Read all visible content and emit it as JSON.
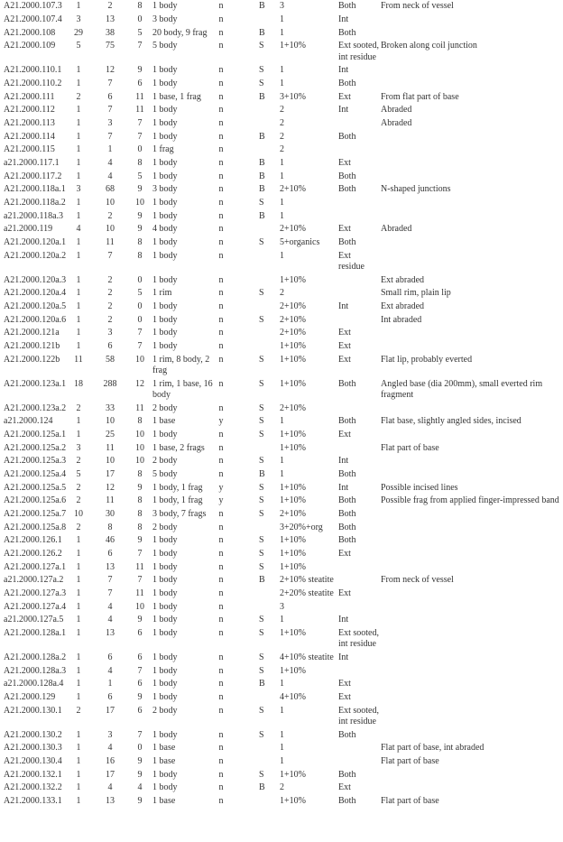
{
  "rows": [
    [
      "A21.2000.107.3",
      "1",
      "2",
      "8",
      "1 body",
      "n",
      "B",
      "3",
      "Both",
      "From neck of vessel"
    ],
    [
      "A21.2000.107.4",
      "3",
      "13",
      "0",
      "3 body",
      "n",
      "",
      "1",
      "Int",
      ""
    ],
    [
      "A21.2000.108",
      "29",
      "38",
      "5",
      "20 body, 9 frag",
      "n",
      "B",
      "1",
      "Both",
      ""
    ],
    [
      "A21.2000.109",
      "5",
      "75",
      "7",
      "5 body",
      "n",
      "S",
      "1+10%",
      "Ext sooted, int residue",
      "Broken along coil junction"
    ],
    [
      "A21.2000.110.1",
      "1",
      "12",
      "9",
      "1 body",
      "n",
      "S",
      "1",
      "Int",
      ""
    ],
    [
      "A21.2000.110.2",
      "1",
      "7",
      "6",
      "1 body",
      "n",
      "S",
      "1",
      "Both",
      ""
    ],
    [
      "A21.2000.111",
      "2",
      "6",
      "11",
      "1 base, 1 frag",
      "n",
      "B",
      "3+10%",
      "Ext",
      "From flat part of base"
    ],
    [
      "A21.2000.112",
      "1",
      "7",
      "11",
      "1 body",
      "n",
      "",
      "2",
      "Int",
      "Abraded"
    ],
    [
      "A21.2000.113",
      "1",
      "3",
      "7",
      "1 body",
      "n",
      "",
      "2",
      "",
      "Abraded"
    ],
    [
      "A21.2000.114",
      "1",
      "7",
      "7",
      "1 body",
      "n",
      "B",
      "2",
      "Both",
      ""
    ],
    [
      "A21.2000.115",
      "1",
      "1",
      "0",
      "1 frag",
      "n",
      "",
      "2",
      "",
      ""
    ],
    [
      "a21.2000.117.1",
      "1",
      "4",
      "8",
      "1 body",
      "n",
      "B",
      "1",
      "Ext",
      ""
    ],
    [
      "A21.2000.117.2",
      "1",
      "4",
      "5",
      "1 body",
      "n",
      "B",
      "1",
      "Both",
      ""
    ],
    [
      "A21.2000.118a.1",
      "3",
      "68",
      "9",
      "3 body",
      "n",
      "B",
      "2+10%",
      "Both",
      "N-shaped junctions"
    ],
    [
      "A21.2000.118a.2",
      "1",
      "10",
      "10",
      "1 body",
      "n",
      "S",
      "1",
      "",
      ""
    ],
    [
      "a21.2000.118a.3",
      "1",
      "2",
      "9",
      "1 body",
      "n",
      "B",
      "1",
      "",
      ""
    ],
    [
      "a21.2000.119",
      "4",
      "10",
      "9",
      "4 body",
      "n",
      "",
      "2+10%",
      "Ext",
      "Abraded"
    ],
    [
      "A21.2000.120a.1",
      "1",
      "11",
      "8",
      "1 body",
      "n",
      "S",
      "5+organics",
      "Both",
      ""
    ],
    [
      "A21.2000.120a.2",
      "1",
      "7",
      "8",
      "1 body",
      "n",
      "",
      "1",
      "Ext residue",
      ""
    ],
    [
      "A21.2000.120a.3",
      "1",
      "2",
      "0",
      "1 body",
      "n",
      "",
      "1+10%",
      "",
      "Ext abraded"
    ],
    [
      "A21.2000.120a.4",
      "1",
      "2",
      "5",
      "1 rim",
      "n",
      "S",
      "2",
      "",
      "Small rim, plain lip"
    ],
    [
      "A21.2000.120a.5",
      "1",
      "2",
      "0",
      "1 body",
      "n",
      "",
      "2+10%",
      "Int",
      "Ext abraded"
    ],
    [
      "A21.2000.120a.6",
      "1",
      "2",
      "0",
      "1 body",
      "n",
      "S",
      "2+10%",
      "",
      "Int abraded"
    ],
    [
      "A21.2000.121a",
      "1",
      "3",
      "7",
      "1 body",
      "n",
      "",
      "2+10%",
      "Ext",
      ""
    ],
    [
      "A21.2000.121b",
      "1",
      "6",
      "7",
      "1 body",
      "n",
      "",
      "1+10%",
      "Ext",
      ""
    ],
    [
      "A21.2000.122b",
      "11",
      "58",
      "10",
      "1 rim, 8 body, 2 frag",
      "n",
      "S",
      "1+10%",
      "Ext",
      "Flat lip, probably everted"
    ],
    [
      "A21.2000.123a.1",
      "18",
      "288",
      "12",
      "1 rim, 1 base, 16 body",
      "n",
      "S",
      "1+10%",
      "Both",
      "Angled base (dia 200mm), small everted rim fragment"
    ],
    [
      "A21.2000.123a.2",
      "2",
      "33",
      "11",
      "2 body",
      "n",
      "S",
      "2+10%",
      "",
      ""
    ],
    [
      "a21.2000.124",
      "1",
      "10",
      "8",
      "1 base",
      "y",
      "S",
      "1",
      "Both",
      "Flat base, slightly angled sides, incised"
    ],
    [
      "A21.2000.125a.1",
      "1",
      "25",
      "10",
      "1 body",
      "n",
      "S",
      "1+10%",
      "Ext",
      ""
    ],
    [
      "A21.2000.125a.2",
      "3",
      "11",
      "10",
      "1 base, 2 frags",
      "n",
      "",
      "1+10%",
      "",
      "Flat part of base"
    ],
    [
      "A21.2000.125a.3",
      "2",
      "10",
      "10",
      "2 body",
      "n",
      "S",
      "1",
      "Int",
      ""
    ],
    [
      "A21.2000.125a.4",
      "5",
      "17",
      "8",
      "5 body",
      "n",
      "B",
      "1",
      "Both",
      ""
    ],
    [
      "A21.2000.125a.5",
      "2",
      "12",
      "9",
      "1 body, 1 frag",
      "y",
      "S",
      "1+10%",
      "Int",
      "Possible incised lines"
    ],
    [
      "A21.2000.125a.6",
      "2",
      "11",
      "8",
      "1 body, 1 frag",
      "y",
      "S",
      "1+10%",
      "Both",
      "Possible frag from applied finger-impressed band"
    ],
    [
      "A21.2000.125a.7",
      "10",
      "30",
      "8",
      "3 body, 7 frags",
      "n",
      "S",
      "2+10%",
      "Both",
      ""
    ],
    [
      "A21.2000.125a.8",
      "2",
      "8",
      "8",
      "2 body",
      "n",
      "",
      "3+20%+org",
      "Both",
      ""
    ],
    [
      "A21.2000.126.1",
      "1",
      "46",
      "9",
      "1 body",
      "n",
      "S",
      "1+10%",
      "Both",
      ""
    ],
    [
      "A21.2000.126.2",
      "1",
      "6",
      "7",
      "1 body",
      "n",
      "S",
      "1+10%",
      "Ext",
      ""
    ],
    [
      "A21.2000.127a.1",
      "1",
      "13",
      "11",
      "1 body",
      "n",
      "S",
      "1+10%",
      "",
      ""
    ],
    [
      "a21.2000.127a.2",
      "1",
      "7",
      "7",
      "1 body",
      "n",
      "B",
      "2+10% steatite",
      "",
      "From neck of vessel"
    ],
    [
      "A21.2000.127a.3",
      "1",
      "7",
      "11",
      "1 body",
      "n",
      "",
      "2+20% steatite",
      "Ext",
      ""
    ],
    [
      "A21.2000.127a.4",
      "1",
      "4",
      "10",
      "1 body",
      "n",
      "",
      "3",
      "",
      ""
    ],
    [
      "a21.2000.127a.5",
      "1",
      "4",
      "9",
      "1 body",
      "n",
      "S",
      "1",
      "Int",
      ""
    ],
    [
      "A21.2000.128a.1",
      "1",
      "13",
      "6",
      "1 body",
      "n",
      "S",
      "1+10%",
      "Ext sooted, int residue",
      ""
    ],
    [
      "A21.2000.128a.2",
      "1",
      "6",
      "6",
      "1 body",
      "n",
      "S",
      "4+10% steatite",
      "Int",
      ""
    ],
    [
      "A21.2000.128a.3",
      "1",
      "4",
      "7",
      "1 body",
      "n",
      "S",
      "1+10%",
      "",
      ""
    ],
    [
      "a21.2000.128a.4",
      "1",
      "1",
      "6",
      "1 body",
      "n",
      "B",
      "1",
      "Ext",
      ""
    ],
    [
      "A21.2000.129",
      "1",
      "6",
      "9",
      "1 body",
      "n",
      "",
      "4+10%",
      "Ext",
      ""
    ],
    [
      "A21.2000.130.1",
      "2",
      "17",
      "6",
      "2 body",
      "n",
      "S",
      "1",
      "Ext sooted, int residue",
      ""
    ],
    [
      "A21.2000.130.2",
      "1",
      "3",
      "7",
      "1 body",
      "n",
      "S",
      "1",
      "Both",
      ""
    ],
    [
      "A21.2000.130.3",
      "1",
      "4",
      "0",
      "1 base",
      "n",
      "",
      "1",
      "",
      "Flat part of base, int abraded"
    ],
    [
      "A21.2000.130.4",
      "1",
      "16",
      "9",
      "1 base",
      "n",
      "",
      "1",
      "",
      "Flat part of base"
    ],
    [
      "A21.2000.132.1",
      "1",
      "17",
      "9",
      "1 body",
      "n",
      "S",
      "1+10%",
      "Both",
      ""
    ],
    [
      "A21.2000.132.2",
      "1",
      "4",
      "4",
      "1 body",
      "n",
      "B",
      "2",
      "Ext",
      ""
    ],
    [
      "A21.2000.133.1",
      "1",
      "13",
      "9",
      "1 base",
      "n",
      "",
      "1+10%",
      "Both",
      "Flat part of base"
    ]
  ]
}
